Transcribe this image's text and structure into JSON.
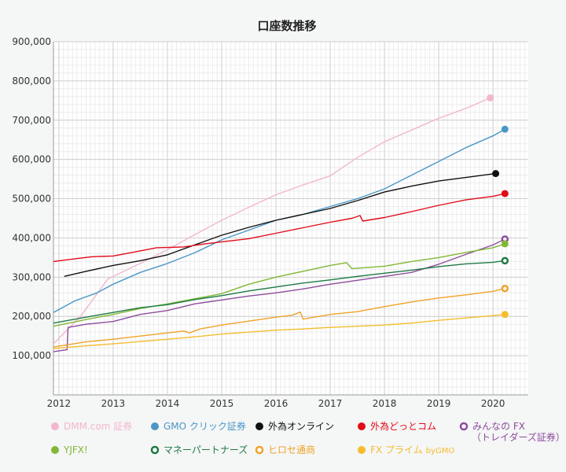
{
  "chart_data": {
    "type": "line",
    "title": "口座数推移",
    "xlabel": "",
    "ylabel": "",
    "xlim": [
      2011.9,
      2020.65
    ],
    "ylim": [
      0,
      900000
    ],
    "yticks": [
      {
        "value": 100000,
        "label": "100,000"
      },
      {
        "value": 200000,
        "label": "200,000"
      },
      {
        "value": 300000,
        "label": "300,000"
      },
      {
        "value": 400000,
        "label": "400,000"
      },
      {
        "value": 500000,
        "label": "500,000"
      },
      {
        "value": 600000,
        "label": "600,000"
      },
      {
        "value": 700000,
        "label": "700,000"
      },
      {
        "value": 800000,
        "label": "800,000"
      },
      {
        "value": 900000,
        "label": "900,000"
      }
    ],
    "xticks": [
      {
        "value": 2012,
        "label": "2012"
      },
      {
        "value": 2013,
        "label": "2013"
      },
      {
        "value": 2014,
        "label": "2014"
      },
      {
        "value": 2015,
        "label": "2015"
      },
      {
        "value": 2016,
        "label": "2016"
      },
      {
        "value": 2017,
        "label": "2017"
      },
      {
        "value": 2018,
        "label": "2018"
      },
      {
        "value": 2019,
        "label": "2019"
      },
      {
        "value": 2020,
        "label": "2020"
      }
    ],
    "grid": true,
    "legend_position": "bottom",
    "series": [
      {
        "name": "DMM.com 証券",
        "color": "#f2b7cf",
        "marker": "filled",
        "points": [
          [
            2011.9,
            130000
          ],
          [
            2012.4,
            200000
          ],
          [
            2012.9,
            295000
          ],
          [
            2013.5,
            335000
          ],
          [
            2014.0,
            370000
          ],
          [
            2014.5,
            408000
          ],
          [
            2015.0,
            445000
          ],
          [
            2015.5,
            478000
          ],
          [
            2016.0,
            510000
          ],
          [
            2016.5,
            535000
          ],
          [
            2017.0,
            558000
          ],
          [
            2017.5,
            605000
          ],
          [
            2018.0,
            645000
          ],
          [
            2018.5,
            675000
          ],
          [
            2019.0,
            705000
          ],
          [
            2019.5,
            730000
          ],
          [
            2019.95,
            757000
          ]
        ]
      },
      {
        "name": "GMO クリック証券",
        "color": "#4a97c6",
        "marker": "filled",
        "points": [
          [
            2011.9,
            210000
          ],
          [
            2012.3,
            240000
          ],
          [
            2012.7,
            260000
          ],
          [
            2013.0,
            282000
          ],
          [
            2013.5,
            312000
          ],
          [
            2014.0,
            335000
          ],
          [
            2014.5,
            362000
          ],
          [
            2015.0,
            395000
          ],
          [
            2015.5,
            420000
          ],
          [
            2016.0,
            445000
          ],
          [
            2016.5,
            460000
          ],
          [
            2017.0,
            480000
          ],
          [
            2017.5,
            500000
          ],
          [
            2018.0,
            525000
          ],
          [
            2018.5,
            560000
          ],
          [
            2019.0,
            595000
          ],
          [
            2019.5,
            630000
          ],
          [
            2020.0,
            660000
          ],
          [
            2020.22,
            677000
          ]
        ]
      },
      {
        "name": "外為オンライン",
        "color": "#111111",
        "marker": "filled",
        "points": [
          [
            2012.1,
            302000
          ],
          [
            2012.5,
            315000
          ],
          [
            2013.0,
            330000
          ],
          [
            2013.5,
            342000
          ],
          [
            2014.0,
            357000
          ],
          [
            2014.5,
            382000
          ],
          [
            2015.0,
            407000
          ],
          [
            2015.5,
            427000
          ],
          [
            2016.0,
            445000
          ],
          [
            2016.5,
            460000
          ],
          [
            2017.0,
            475000
          ],
          [
            2017.5,
            495000
          ],
          [
            2018.0,
            517000
          ],
          [
            2018.5,
            532000
          ],
          [
            2019.0,
            545000
          ],
          [
            2019.5,
            554000
          ],
          [
            2020.05,
            564000
          ]
        ]
      },
      {
        "name": "外為どっとコム",
        "color": "#e10c18",
        "marker": "filled",
        "points": [
          [
            2011.9,
            340000
          ],
          [
            2012.3,
            347000
          ],
          [
            2012.6,
            352000
          ],
          [
            2013.0,
            354000
          ],
          [
            2013.5,
            367000
          ],
          [
            2013.8,
            375000
          ],
          [
            2014.3,
            377000
          ],
          [
            2014.7,
            385000
          ],
          [
            2015.0,
            390000
          ],
          [
            2015.5,
            398000
          ],
          [
            2016.0,
            412000
          ],
          [
            2016.5,
            426000
          ],
          [
            2017.0,
            440000
          ],
          [
            2017.4,
            450000
          ],
          [
            2017.55,
            457000
          ],
          [
            2017.6,
            443000
          ],
          [
            2018.0,
            452000
          ],
          [
            2018.5,
            467000
          ],
          [
            2019.0,
            483000
          ],
          [
            2019.5,
            497000
          ],
          [
            2020.0,
            506000
          ],
          [
            2020.22,
            513000
          ]
        ]
      },
      {
        "name": "みんなの FX",
        "subname": "（トレイダーズ証券）",
        "color": "#8e4c9e",
        "marker": "hollow",
        "points": [
          [
            2011.9,
            110000
          ],
          [
            2012.15,
            115000
          ],
          [
            2012.17,
            172000
          ],
          [
            2012.5,
            180000
          ],
          [
            2013.0,
            187000
          ],
          [
            2013.5,
            205000
          ],
          [
            2014.0,
            215000
          ],
          [
            2014.5,
            232000
          ],
          [
            2015.0,
            242000
          ],
          [
            2015.5,
            252000
          ],
          [
            2016.0,
            260000
          ],
          [
            2016.5,
            270000
          ],
          [
            2017.0,
            282000
          ],
          [
            2017.5,
            292000
          ],
          [
            2018.0,
            302000
          ],
          [
            2018.5,
            312000
          ],
          [
            2019.0,
            333000
          ],
          [
            2019.5,
            358000
          ],
          [
            2020.0,
            382000
          ],
          [
            2020.22,
            397000
          ]
        ]
      },
      {
        "name": "YJFX!",
        "color": "#82b735",
        "marker": "filled",
        "points": [
          [
            2011.9,
            175000
          ],
          [
            2012.5,
            192000
          ],
          [
            2013.0,
            205000
          ],
          [
            2013.5,
            220000
          ],
          [
            2014.0,
            232000
          ],
          [
            2014.5,
            245000
          ],
          [
            2015.0,
            258000
          ],
          [
            2015.5,
            282000
          ],
          [
            2016.0,
            300000
          ],
          [
            2016.5,
            315000
          ],
          [
            2017.0,
            330000
          ],
          [
            2017.3,
            337000
          ],
          [
            2017.4,
            322000
          ],
          [
            2018.0,
            328000
          ],
          [
            2018.5,
            340000
          ],
          [
            2019.0,
            350000
          ],
          [
            2019.5,
            363000
          ],
          [
            2020.0,
            375000
          ],
          [
            2020.22,
            385000
          ]
        ]
      },
      {
        "name": "マネーパートナーズ",
        "color": "#1e7a44",
        "marker": "hollow",
        "points": [
          [
            2011.9,
            183000
          ],
          [
            2012.5,
            198000
          ],
          [
            2013.0,
            210000
          ],
          [
            2013.5,
            222000
          ],
          [
            2014.0,
            230000
          ],
          [
            2014.5,
            243000
          ],
          [
            2015.0,
            253000
          ],
          [
            2015.5,
            265000
          ],
          [
            2016.0,
            275000
          ],
          [
            2016.5,
            285000
          ],
          [
            2017.0,
            293000
          ],
          [
            2017.5,
            302000
          ],
          [
            2018.0,
            310000
          ],
          [
            2018.5,
            318000
          ],
          [
            2019.0,
            327000
          ],
          [
            2019.5,
            334000
          ],
          [
            2020.0,
            338000
          ],
          [
            2020.22,
            342000
          ]
        ]
      },
      {
        "name": "ヒロセ通商",
        "color": "#f0a22a",
        "marker": "hollow",
        "points": [
          [
            2011.9,
            122000
          ],
          [
            2012.5,
            135000
          ],
          [
            2013.0,
            142000
          ],
          [
            2013.5,
            150000
          ],
          [
            2014.0,
            158000
          ],
          [
            2014.3,
            163000
          ],
          [
            2014.4,
            158000
          ],
          [
            2014.6,
            168000
          ],
          [
            2015.0,
            178000
          ],
          [
            2015.5,
            188000
          ],
          [
            2016.0,
            198000
          ],
          [
            2016.3,
            203000
          ],
          [
            2016.45,
            211000
          ],
          [
            2016.5,
            193000
          ],
          [
            2017.0,
            205000
          ],
          [
            2017.5,
            212000
          ],
          [
            2018.0,
            225000
          ],
          [
            2018.5,
            237000
          ],
          [
            2019.0,
            247000
          ],
          [
            2019.5,
            255000
          ],
          [
            2020.0,
            264000
          ],
          [
            2020.22,
            271000
          ]
        ]
      },
      {
        "name": "FX プライム",
        "subname": "byGMO",
        "color": "#f3bd2c",
        "marker": "filled",
        "points": [
          [
            2011.9,
            118000
          ],
          [
            2012.5,
            125000
          ],
          [
            2013.0,
            130000
          ],
          [
            2013.5,
            136000
          ],
          [
            2014.0,
            142000
          ],
          [
            2014.5,
            148000
          ],
          [
            2015.0,
            155000
          ],
          [
            2015.5,
            160000
          ],
          [
            2016.0,
            165000
          ],
          [
            2016.5,
            168000
          ],
          [
            2017.0,
            172000
          ],
          [
            2017.5,
            175000
          ],
          [
            2018.0,
            178000
          ],
          [
            2018.5,
            183000
          ],
          [
            2019.0,
            190000
          ],
          [
            2019.5,
            196000
          ],
          [
            2020.0,
            202000
          ],
          [
            2020.22,
            205000
          ]
        ]
      }
    ]
  }
}
